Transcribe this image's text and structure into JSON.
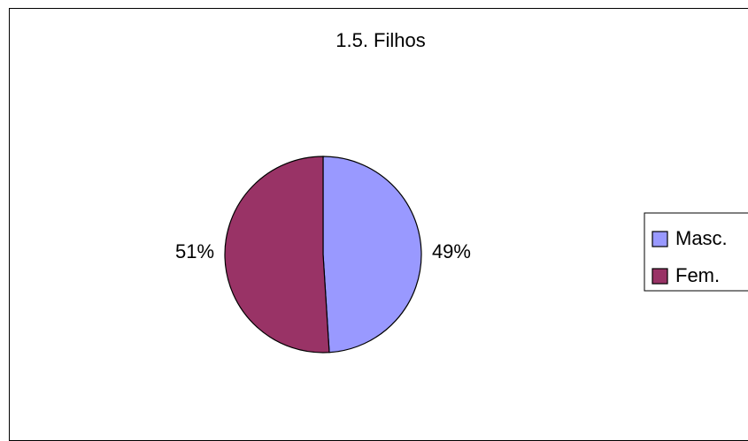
{
  "chart_data": {
    "type": "pie",
    "title": "1.5. Filhos",
    "categories": [
      "Masc.",
      "Fem."
    ],
    "values": [
      49,
      51
    ],
    "labels": [
      "49%",
      "51%"
    ],
    "colors": [
      "#9999ff",
      "#993366"
    ],
    "legend_position": "right"
  }
}
